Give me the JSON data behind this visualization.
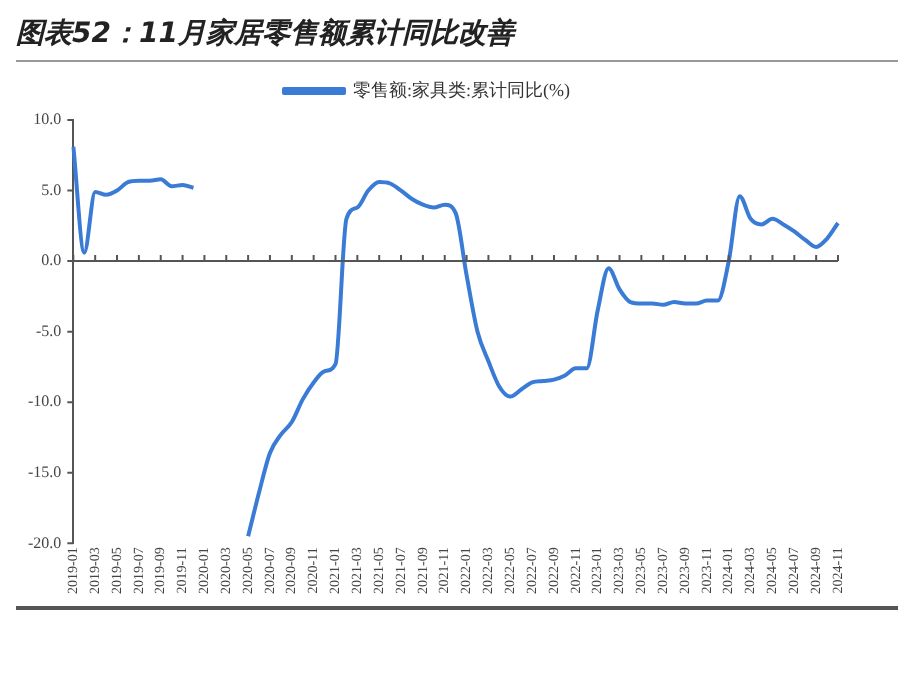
{
  "chart_data": {
    "type": "line",
    "title": "图表52：11月家居零售额累计同比改善",
    "categories": [
      "2019-01",
      null,
      "2019-03",
      null,
      "2019-05",
      null,
      "2019-07",
      null,
      "2019-09",
      null,
      "2019-11",
      null,
      "2020-01",
      null,
      "2020-03",
      null,
      "2020-05",
      null,
      "2020-07",
      null,
      "2020-09",
      null,
      "2020-11",
      null,
      "2021-01",
      null,
      "2021-03",
      null,
      "2021-05",
      null,
      "2021-07",
      null,
      "2021-09",
      null,
      "2021-11",
      null,
      "2022-01",
      null,
      "2022-03",
      null,
      "2022-05",
      null,
      "2022-07",
      null,
      "2022-09",
      null,
      "2022-11",
      null,
      "2023-01",
      null,
      "2023-03",
      null,
      "2023-05",
      null,
      "2023-07",
      null,
      "2023-09",
      null,
      "2023-11",
      null,
      "2024-01",
      null,
      "2024-03",
      null,
      "2024-05",
      null,
      "2024-07",
      null,
      "2024-09",
      null,
      "2024-11"
    ],
    "series": [
      {
        "name": "零售额:家具类:累计同比(%)",
        "color": "#3a7bd5",
        "values": [
          8.1,
          0.6,
          4.9,
          4.7,
          5.0,
          5.6,
          5.7,
          5.7,
          5.8,
          5.3,
          5.4,
          5.2,
          null,
          null,
          null,
          null,
          -19.5,
          -16.4,
          -13.6,
          -12.3,
          -11.4,
          -9.8,
          -8.6,
          -7.8,
          -7.3,
          3.0,
          3.8,
          5.0,
          5.6,
          5.5,
          5.0,
          4.4,
          4.0,
          3.8,
          4.0,
          3.4,
          -1.0,
          -5.0,
          -7.1,
          -8.9,
          -9.6,
          -9.1,
          -8.6,
          -8.5,
          -8.4,
          -8.1,
          -7.6,
          -7.6,
          -3.5,
          -0.5,
          -2.0,
          -2.9,
          -3.0,
          -3.0,
          -3.1,
          -2.9,
          -3.0,
          -3.0,
          -2.8,
          -2.8,
          0.0,
          4.6,
          3.0,
          2.6,
          3.0,
          2.6,
          2.1,
          1.5,
          1.0,
          1.6,
          2.7
        ]
      }
    ],
    "ylim": [
      -20,
      10
    ],
    "yticks": [
      {
        "value": -20,
        "label": "-20.0"
      },
      {
        "value": -15,
        "label": "-15.0"
      },
      {
        "value": -10,
        "label": "-10.0"
      },
      {
        "value": -5,
        "label": "-5.0"
      },
      {
        "value": 0,
        "label": "0.0"
      },
      {
        "value": 5,
        "label": "5.0"
      },
      {
        "value": 10,
        "label": "10.0"
      }
    ],
    "legend": "top",
    "marker": "none",
    "line_style": "solid"
  }
}
